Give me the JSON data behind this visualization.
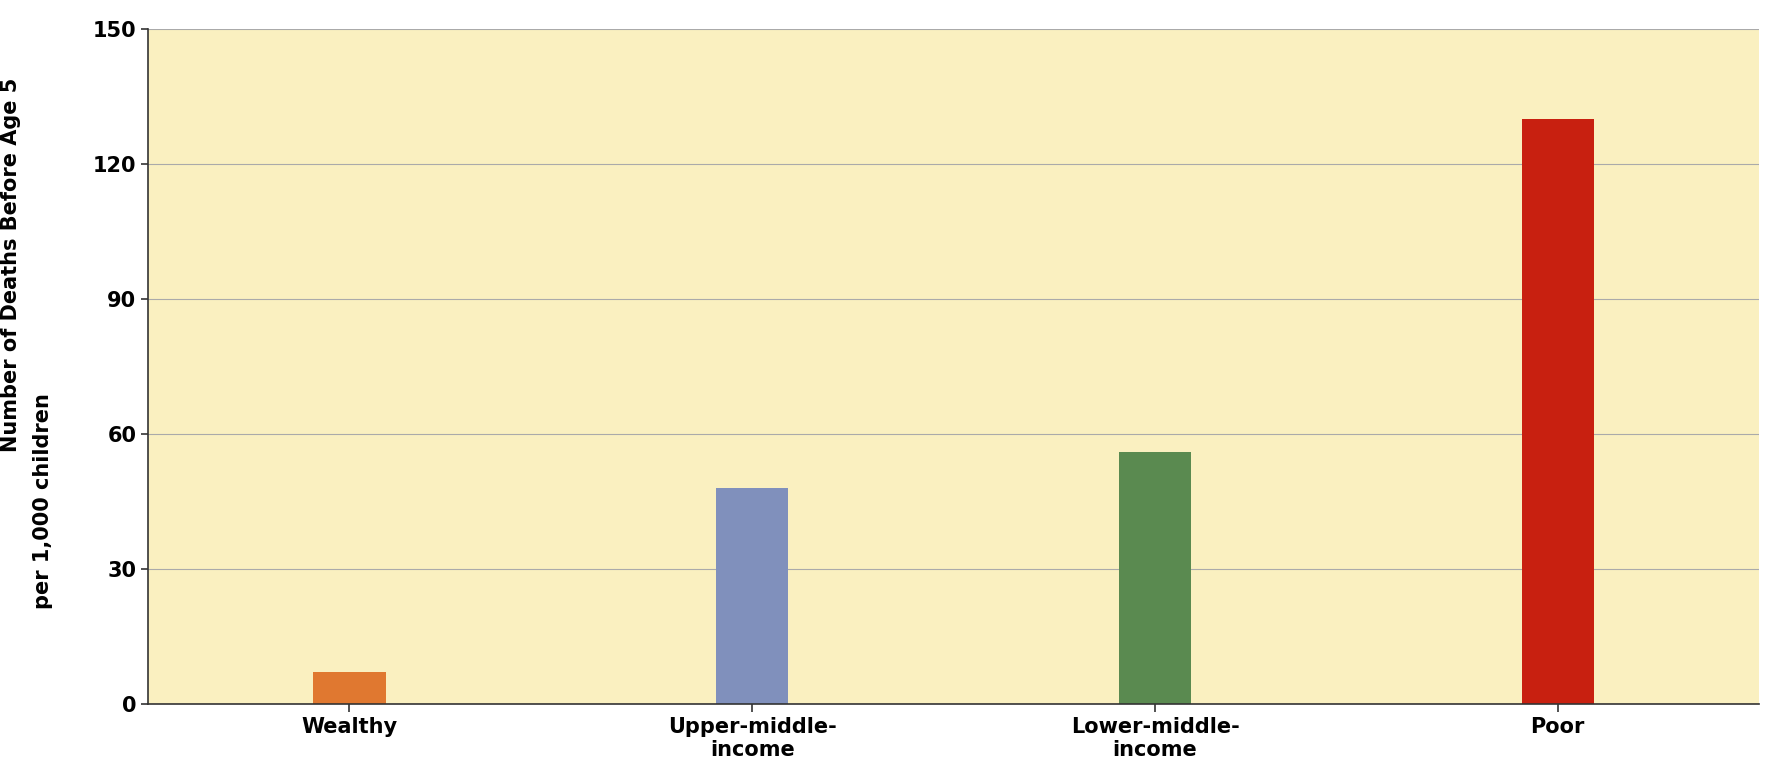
{
  "categories": [
    "Wealthy",
    "Upper-middle-\nincome",
    "Lower-middle-\nincome",
    "Poor"
  ],
  "values": [
    7,
    48,
    56,
    130
  ],
  "bar_colors": [
    "#E07830",
    "#8090BC",
    "#5A8A50",
    "#C82010"
  ],
  "ylabel_line1": "Number of Deaths Before Age 5",
  "ylabel_line2": "per 1,000 children",
  "ylim": [
    0,
    150
  ],
  "yticks": [
    0,
    30,
    60,
    90,
    120,
    150
  ],
  "background_color": "#FFFFFF",
  "plot_bg_color": "#FAF0C0",
  "grid_color": "#AAAAAA",
  "bar_width": 0.18,
  "figsize": [
    17.8,
    7.81
  ],
  "dpi": 100,
  "ylabel_fontsize": 15,
  "tick_fontsize": 15,
  "xlabel_fontsize": 15
}
